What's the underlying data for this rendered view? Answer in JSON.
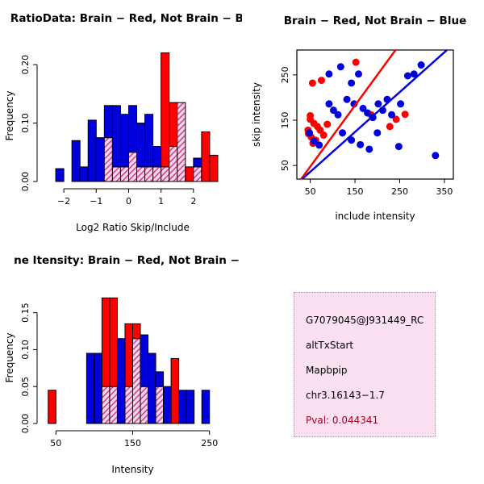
{
  "chart_data": [
    {
      "id": "log2ratio_histogram",
      "type": "bar",
      "title": "RatioData: Brain − Red, Not Brain − Blu",
      "xlabel": "Log2 Ratio Skip/Include",
      "ylabel": "Frequency",
      "xlim": [
        -2.6,
        2.85
      ],
      "ylim": [
        0,
        0.225
      ],
      "xticks": [
        -2,
        -1,
        0,
        1,
        2
      ],
      "yticks": [
        0.0,
        0.1,
        0.2
      ],
      "bin_width": 0.25,
      "grid": false,
      "overlap_style": "hatched",
      "series": [
        {
          "name": "not_brain",
          "color": "#0000dd",
          "bins": [
            [
              -2.25,
              0.022
            ],
            [
              -1.75,
              0.07
            ],
            [
              -1.5,
              0.025
            ],
            [
              -1.25,
              0.105
            ],
            [
              -1.0,
              0.075
            ],
            [
              -0.75,
              0.13
            ],
            [
              -0.5,
              0.13
            ],
            [
              -0.25,
              0.115
            ],
            [
              0.0,
              0.13
            ],
            [
              0.25,
              0.1
            ],
            [
              0.5,
              0.115
            ],
            [
              0.75,
              0.06
            ],
            [
              1.0,
              0.025
            ],
            [
              1.25,
              0.06
            ],
            [
              1.5,
              0.135
            ],
            [
              2.0,
              0.04
            ]
          ]
        },
        {
          "name": "brain",
          "color": "#ff0000",
          "bins": [
            [
              -0.75,
              0.075
            ],
            [
              -0.5,
              0.025
            ],
            [
              -0.25,
              0.025
            ],
            [
              0.0,
              0.05
            ],
            [
              0.25,
              0.025
            ],
            [
              0.5,
              0.025
            ],
            [
              0.75,
              0.025
            ],
            [
              1.0,
              0.22
            ],
            [
              1.25,
              0.135
            ],
            [
              1.5,
              0.135
            ],
            [
              1.75,
              0.025
            ],
            [
              2.0,
              0.025
            ],
            [
              2.25,
              0.085
            ],
            [
              2.5,
              0.045
            ]
          ]
        }
      ]
    },
    {
      "id": "intensity_scatter",
      "type": "scatter",
      "title": "Brain − Red, Not Brain − Blue",
      "xlabel": "include intensity",
      "ylabel": "skip intensity",
      "xlim": [
        20,
        370
      ],
      "ylim": [
        20,
        305
      ],
      "xticks": [
        50,
        150,
        250,
        350
      ],
      "yticks": [
        50,
        150,
        250
      ],
      "grid": false,
      "series": [
        {
          "name": "brain",
          "color": "#ff0000",
          "points": [
            [
              45,
              128
            ],
            [
              50,
              160
            ],
            [
              55,
              232
            ],
            [
              75,
              238
            ],
            [
              50,
              152
            ],
            [
              58,
              143
            ],
            [
              66,
              136
            ],
            [
              72,
              128
            ],
            [
              46,
              120
            ],
            [
              52,
              113
            ],
            [
              62,
              106
            ],
            [
              80,
              117
            ],
            [
              56,
              99
            ],
            [
              88,
              141
            ],
            [
              152,
              278
            ],
            [
              186,
              162
            ],
            [
              228,
              136
            ],
            [
              242,
              152
            ],
            [
              262,
              163
            ]
          ]
        },
        {
          "name": "not_brain",
          "color": "#0000dd",
          "points": [
            [
              48,
              122
            ],
            [
              58,
              104
            ],
            [
              70,
              95
            ],
            [
              92,
              252
            ],
            [
              118,
              268
            ],
            [
              142,
              232
            ],
            [
              158,
              252
            ],
            [
              132,
              196
            ],
            [
              148,
              186
            ],
            [
              168,
              176
            ],
            [
              178,
              166
            ],
            [
              190,
              156
            ],
            [
              202,
              186
            ],
            [
              212,
              172
            ],
            [
              222,
              196
            ],
            [
              232,
              162
            ],
            [
              252,
              186
            ],
            [
              268,
              248
            ],
            [
              282,
              252
            ],
            [
              298,
              272
            ],
            [
              330,
              72
            ],
            [
              122,
              122
            ],
            [
              142,
              106
            ],
            [
              162,
              96
            ],
            [
              182,
              86
            ],
            [
              200,
              122
            ],
            [
              102,
              172
            ],
            [
              112,
              162
            ],
            [
              92,
              186
            ],
            [
              248,
              92
            ]
          ]
        }
      ],
      "fit_lines": [
        {
          "name": "brain_fit",
          "color": "#ff0000",
          "slope": 1.35,
          "intercept": -20
        },
        {
          "name": "not_brain_fit",
          "color": "#0000dd",
          "slope": 0.88,
          "intercept": -8
        }
      ]
    },
    {
      "id": "gene_intensity_histogram",
      "type": "bar",
      "title": "ne Itensity: Brain − Red, Not Brain − B",
      "xlabel": "Intensity",
      "ylabel": "Frequency",
      "xlim": [
        35,
        265
      ],
      "ylim": [
        0,
        0.178
      ],
      "xticks": [
        50,
        150,
        250
      ],
      "yticks": [
        0.0,
        0.05,
        0.1,
        0.15
      ],
      "bin_width": 10,
      "grid": false,
      "overlap_style": "hatched",
      "series": [
        {
          "name": "not_brain",
          "color": "#0000dd",
          "bins": [
            [
              90,
              0.095
            ],
            [
              100,
              0.095
            ],
            [
              110,
              0.05
            ],
            [
              120,
              0.05
            ],
            [
              130,
              0.115
            ],
            [
              140,
              0.05
            ],
            [
              150,
              0.115
            ],
            [
              160,
              0.12
            ],
            [
              170,
              0.095
            ],
            [
              180,
              0.07
            ],
            [
              190,
              0.05
            ],
            [
              210,
              0.045
            ],
            [
              220,
              0.045
            ],
            [
              240,
              0.045
            ]
          ]
        },
        {
          "name": "brain",
          "color": "#ff0000",
          "bins": [
            [
              40,
              0.045
            ],
            [
              110,
              0.17
            ],
            [
              120,
              0.17
            ],
            [
              140,
              0.135
            ],
            [
              150,
              0.135
            ],
            [
              160,
              0.05
            ],
            [
              180,
              0.05
            ],
            [
              200,
              0.088
            ]
          ]
        }
      ]
    }
  ],
  "info_box": {
    "bg": "#fbe0f2",
    "border": "#d873c2",
    "lines": [
      {
        "text": "G7079045@J931449_RC",
        "color": "#000000"
      },
      {
        "text": "altTxStart",
        "color": "#000000"
      },
      {
        "text": "Mapbpip",
        "color": "#000000"
      },
      {
        "text": "chr3.16143−1.7",
        "color": "#000000"
      },
      {
        "text": "Pval: 0.044341",
        "color": "#aa0022"
      }
    ]
  },
  "style": {
    "hatch_bg": "#f0d6ee",
    "hatch_line": "#cc3377",
    "axis_color": "#000000"
  }
}
